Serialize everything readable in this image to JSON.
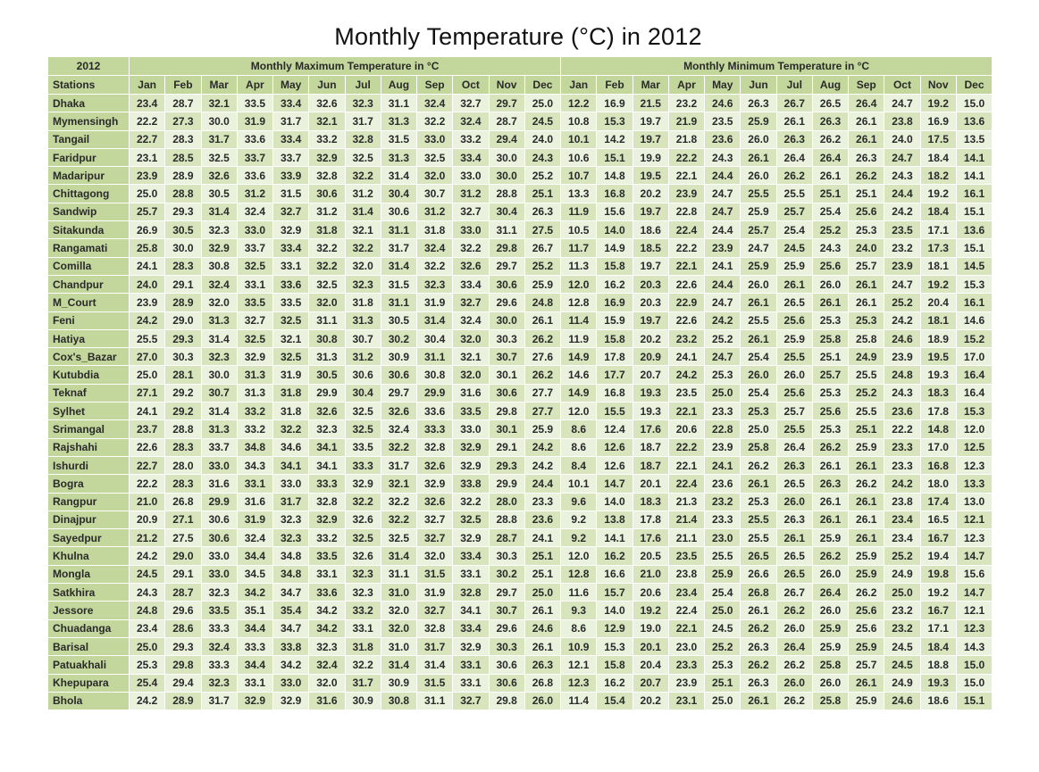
{
  "title": "Monthly Temperature (°C) in 2012",
  "chart_data": {
    "type": "table",
    "title": "Monthly Temperature (°C) in 2012",
    "year_label": "2012",
    "stations_label": "Stations",
    "group_headers": {
      "max": "Monthly Maximum Temperature in °C",
      "min": "Monthly Minimum Temperature in °C"
    },
    "months": [
      "Jan",
      "Feb",
      "Mar",
      "Apr",
      "May",
      "Jun",
      "Jul",
      "Aug",
      "Sep",
      "Oct",
      "Nov",
      "Dec"
    ],
    "rows": [
      {
        "station": "Dhaka",
        "max": [
          23.4,
          28.7,
          32.1,
          33.5,
          33.4,
          32.6,
          32.3,
          31.1,
          32.4,
          32.7,
          29.7,
          25.0
        ],
        "min": [
          12.2,
          16.9,
          21.5,
          23.2,
          24.6,
          26.3,
          26.7,
          26.5,
          26.4,
          24.7,
          19.2,
          15.0
        ]
      },
      {
        "station": "Mymensingh",
        "max": [
          22.2,
          27.3,
          30.0,
          31.9,
          31.7,
          32.1,
          31.7,
          31.3,
          32.2,
          32.4,
          28.7,
          24.5
        ],
        "min": [
          10.8,
          15.3,
          19.7,
          21.9,
          23.5,
          25.9,
          26.1,
          26.3,
          26.1,
          23.8,
          16.9,
          13.6
        ]
      },
      {
        "station": "Tangail",
        "max": [
          22.7,
          28.3,
          31.7,
          33.6,
          33.4,
          33.2,
          32.8,
          31.5,
          33.0,
          33.2,
          29.4,
          24.0
        ],
        "min": [
          10.1,
          14.2,
          19.7,
          21.8,
          23.6,
          26.0,
          26.3,
          26.2,
          26.1,
          24.0,
          17.5,
          13.5
        ]
      },
      {
        "station": "Faridpur",
        "max": [
          23.1,
          28.5,
          32.5,
          33.7,
          33.7,
          32.9,
          32.5,
          31.3,
          32.5,
          33.4,
          30.0,
          24.3
        ],
        "min": [
          10.6,
          15.1,
          19.9,
          22.2,
          24.3,
          26.1,
          26.4,
          26.4,
          26.3,
          24.7,
          18.4,
          14.1
        ]
      },
      {
        "station": "Madaripur",
        "max": [
          23.9,
          28.9,
          32.6,
          33.6,
          33.9,
          32.8,
          32.2,
          31.4,
          32.0,
          33.0,
          30.0,
          25.2
        ],
        "min": [
          10.7,
          14.8,
          19.5,
          22.1,
          24.4,
          26.0,
          26.2,
          26.1,
          26.2,
          24.3,
          18.2,
          14.1
        ]
      },
      {
        "station": "Chittagong",
        "max": [
          25.0,
          28.8,
          30.5,
          31.2,
          31.5,
          30.6,
          31.2,
          30.4,
          30.7,
          31.2,
          28.8,
          25.1
        ],
        "min": [
          13.3,
          16.8,
          20.2,
          23.9,
          24.7,
          25.5,
          25.5,
          25.1,
          25.1,
          24.4,
          19.2,
          16.1
        ]
      },
      {
        "station": "Sandwip",
        "max": [
          25.7,
          29.3,
          31.4,
          32.4,
          32.7,
          31.2,
          31.4,
          30.6,
          31.2,
          32.7,
          30.4,
          26.3
        ],
        "min": [
          11.9,
          15.6,
          19.7,
          22.8,
          24.7,
          25.9,
          25.7,
          25.4,
          25.6,
          24.2,
          18.4,
          15.1
        ]
      },
      {
        "station": "Sitakunda",
        "max": [
          26.9,
          30.5,
          32.3,
          33.0,
          32.9,
          31.8,
          32.1,
          31.1,
          31.8,
          33.0,
          31.1,
          27.5
        ],
        "min": [
          10.5,
          14.0,
          18.6,
          22.4,
          24.4,
          25.7,
          25.4,
          25.2,
          25.3,
          23.5,
          17.1,
          13.6
        ]
      },
      {
        "station": "Rangamati",
        "max": [
          25.8,
          30.0,
          32.9,
          33.7,
          33.4,
          32.2,
          32.2,
          31.7,
          32.4,
          32.2,
          29.8,
          26.7
        ],
        "min": [
          11.7,
          14.9,
          18.5,
          22.2,
          23.9,
          24.7,
          24.5,
          24.3,
          24.0,
          23.2,
          17.3,
          15.1
        ]
      },
      {
        "station": "Comilla",
        "max": [
          24.1,
          28.3,
          30.8,
          32.5,
          33.1,
          32.2,
          32.0,
          31.4,
          32.2,
          32.6,
          29.7,
          25.2
        ],
        "min": [
          11.3,
          15.8,
          19.7,
          22.1,
          24.1,
          25.9,
          25.9,
          25.6,
          25.7,
          23.9,
          18.1,
          14.5
        ]
      },
      {
        "station": "Chandpur",
        "max": [
          24.0,
          29.1,
          32.4,
          33.1,
          33.6,
          32.5,
          32.3,
          31.5,
          32.3,
          33.4,
          30.6,
          25.9
        ],
        "min": [
          12.0,
          16.2,
          20.3,
          22.6,
          24.4,
          26.0,
          26.1,
          26.0,
          26.1,
          24.7,
          19.2,
          15.3
        ]
      },
      {
        "station": "M_Court",
        "max": [
          23.9,
          28.9,
          32.0,
          33.5,
          33.5,
          32.0,
          31.8,
          31.1,
          31.9,
          32.7,
          29.6,
          24.8
        ],
        "min": [
          12.8,
          16.9,
          20.3,
          22.9,
          24.7,
          26.1,
          26.5,
          26.1,
          26.1,
          25.2,
          20.4,
          16.1
        ]
      },
      {
        "station": "Feni",
        "max": [
          24.2,
          29.0,
          31.3,
          32.7,
          32.5,
          31.1,
          31.3,
          30.5,
          31.4,
          32.4,
          30.0,
          26.1
        ],
        "min": [
          11.4,
          15.9,
          19.7,
          22.6,
          24.2,
          25.5,
          25.6,
          25.3,
          25.3,
          24.2,
          18.1,
          14.6
        ]
      },
      {
        "station": "Hatiya",
        "max": [
          25.5,
          29.3,
          31.4,
          32.5,
          32.1,
          30.8,
          30.7,
          30.2,
          30.4,
          32.0,
          30.3,
          26.2
        ],
        "min": [
          11.9,
          15.8,
          20.2,
          23.2,
          25.2,
          26.1,
          25.9,
          25.8,
          25.8,
          24.6,
          18.9,
          15.2
        ]
      },
      {
        "station": "Cox's_Bazar",
        "max": [
          27.0,
          30.3,
          32.3,
          32.9,
          32.5,
          31.3,
          31.2,
          30.9,
          31.1,
          32.1,
          30.7,
          27.6
        ],
        "min": [
          14.9,
          17.8,
          20.9,
          24.1,
          24.7,
          25.4,
          25.5,
          25.1,
          24.9,
          23.9,
          19.5,
          17.0
        ]
      },
      {
        "station": "Kutubdia",
        "max": [
          25.0,
          28.1,
          30.0,
          31.3,
          31.9,
          30.5,
          30.6,
          30.6,
          30.8,
          32.0,
          30.1,
          26.2
        ],
        "min": [
          14.6,
          17.7,
          20.7,
          24.2,
          25.3,
          26.0,
          26.0,
          25.7,
          25.5,
          24.8,
          19.3,
          16.4
        ]
      },
      {
        "station": "Teknaf",
        "max": [
          27.1,
          29.2,
          30.7,
          31.3,
          31.8,
          29.9,
          30.4,
          29.7,
          29.9,
          31.6,
          30.6,
          27.7
        ],
        "min": [
          14.9,
          16.8,
          19.3,
          23.5,
          25.0,
          25.4,
          25.6,
          25.3,
          25.2,
          24.3,
          18.3,
          16.4
        ]
      },
      {
        "station": "Sylhet",
        "max": [
          24.1,
          29.2,
          31.4,
          33.2,
          31.8,
          32.6,
          32.5,
          32.6,
          33.6,
          33.5,
          29.8,
          27.7
        ],
        "min": [
          12.0,
          15.5,
          19.3,
          22.1,
          23.3,
          25.3,
          25.7,
          25.6,
          25.5,
          23.6,
          17.8,
          15.3
        ]
      },
      {
        "station": "Srimangal",
        "max": [
          23.7,
          28.8,
          31.3,
          33.2,
          32.2,
          32.3,
          32.5,
          32.4,
          33.3,
          33.0,
          30.1,
          25.9
        ],
        "min": [
          8.6,
          12.4,
          17.6,
          20.6,
          22.8,
          25.0,
          25.5,
          25.3,
          25.1,
          22.2,
          14.8,
          12.0
        ]
      },
      {
        "station": "Rajshahi",
        "max": [
          22.6,
          28.3,
          33.7,
          34.8,
          34.6,
          34.1,
          33.5,
          32.2,
          32.8,
          32.9,
          29.1,
          24.2
        ],
        "min": [
          8.6,
          12.6,
          18.7,
          22.2,
          23.9,
          25.8,
          26.4,
          26.2,
          25.9,
          23.3,
          17.0,
          12.5
        ]
      },
      {
        "station": "Ishurdi",
        "max": [
          22.7,
          28.0,
          33.0,
          34.3,
          34.1,
          34.1,
          33.3,
          31.7,
          32.6,
          32.9,
          29.3,
          24.2
        ],
        "min": [
          8.4,
          12.6,
          18.7,
          22.1,
          24.1,
          26.2,
          26.3,
          26.1,
          26.1,
          23.3,
          16.8,
          12.3
        ]
      },
      {
        "station": "Bogra",
        "max": [
          22.2,
          28.3,
          31.6,
          33.1,
          33.0,
          33.3,
          32.9,
          32.1,
          32.9,
          33.8,
          29.9,
          24.4
        ],
        "min": [
          10.1,
          14.7,
          20.1,
          22.4,
          23.6,
          26.1,
          26.5,
          26.3,
          26.2,
          24.2,
          18.0,
          13.3
        ]
      },
      {
        "station": "Rangpur",
        "max": [
          21.0,
          26.8,
          29.9,
          31.6,
          31.7,
          32.8,
          32.2,
          32.2,
          32.6,
          32.2,
          28.0,
          23.3
        ],
        "min": [
          9.6,
          14.0,
          18.3,
          21.3,
          23.2,
          25.3,
          26.0,
          26.1,
          26.1,
          23.8,
          17.4,
          13.0
        ]
      },
      {
        "station": "Dinajpur",
        "max": [
          20.9,
          27.1,
          30.6,
          31.9,
          32.3,
          32.9,
          32.6,
          32.2,
          32.7,
          32.5,
          28.8,
          23.6
        ],
        "min": [
          9.2,
          13.8,
          17.8,
          21.4,
          23.3,
          25.5,
          26.3,
          26.1,
          26.1,
          23.4,
          16.5,
          12.1
        ]
      },
      {
        "station": "Sayedpur",
        "max": [
          21.2,
          27.5,
          30.6,
          32.4,
          32.3,
          33.2,
          32.5,
          32.5,
          32.7,
          32.9,
          28.7,
          24.1
        ],
        "min": [
          9.2,
          14.1,
          17.6,
          21.1,
          23.0,
          25.5,
          26.1,
          25.9,
          26.1,
          23.4,
          16.7,
          12.3
        ]
      },
      {
        "station": "Khulna",
        "max": [
          24.2,
          29.0,
          33.0,
          34.4,
          34.8,
          33.5,
          32.6,
          31.4,
          32.0,
          33.4,
          30.3,
          25.1
        ],
        "min": [
          12.0,
          16.2,
          20.5,
          23.5,
          25.5,
          26.5,
          26.5,
          26.2,
          25.9,
          25.2,
          19.4,
          14.7
        ]
      },
      {
        "station": "Mongla",
        "max": [
          24.5,
          29.1,
          33.0,
          34.5,
          34.8,
          33.1,
          32.3,
          31.1,
          31.5,
          33.1,
          30.2,
          25.1
        ],
        "min": [
          12.8,
          16.6,
          21.0,
          23.8,
          25.9,
          26.6,
          26.5,
          26.0,
          25.9,
          24.9,
          19.8,
          15.6
        ]
      },
      {
        "station": "Satkhira",
        "max": [
          24.3,
          28.7,
          32.3,
          34.2,
          34.7,
          33.6,
          32.3,
          31.0,
          31.9,
          32.8,
          29.7,
          25.0
        ],
        "min": [
          11.6,
          15.7,
          20.6,
          23.4,
          25.4,
          26.8,
          26.7,
          26.4,
          26.2,
          25.0,
          19.2,
          14.7
        ]
      },
      {
        "station": "Jessore",
        "max": [
          24.8,
          29.6,
          33.5,
          35.1,
          35.4,
          34.2,
          33.2,
          32.0,
          32.7,
          34.1,
          30.7,
          26.1
        ],
        "min": [
          9.3,
          14.0,
          19.2,
          22.4,
          25.0,
          26.1,
          26.2,
          26.0,
          25.6,
          23.2,
          16.7,
          12.1
        ]
      },
      {
        "station": "Chuadanga",
        "max": [
          23.4,
          28.6,
          33.3,
          34.4,
          34.7,
          34.2,
          33.1,
          32.0,
          32.8,
          33.4,
          29.6,
          24.6
        ],
        "min": [
          8.6,
          12.9,
          19.0,
          22.1,
          24.5,
          26.2,
          26.0,
          25.9,
          25.6,
          23.2,
          17.1,
          12.3
        ]
      },
      {
        "station": "Barisal",
        "max": [
          25.0,
          29.3,
          32.4,
          33.3,
          33.8,
          32.3,
          31.8,
          31.0,
          31.7,
          32.9,
          30.3,
          26.1
        ],
        "min": [
          10.9,
          15.3,
          20.1,
          23.0,
          25.2,
          26.3,
          26.4,
          25.9,
          25.9,
          24.5,
          18.4,
          14.3
        ]
      },
      {
        "station": "Patuakhali",
        "max": [
          25.3,
          29.8,
          33.3,
          34.4,
          34.2,
          32.4,
          32.2,
          31.4,
          31.4,
          33.1,
          30.6,
          26.3
        ],
        "min": [
          12.1,
          15.8,
          20.4,
          23.3,
          25.3,
          26.2,
          26.2,
          25.8,
          25.7,
          24.5,
          18.8,
          15.0
        ]
      },
      {
        "station": "Khepupara",
        "max": [
          25.4,
          29.4,
          32.3,
          33.1,
          33.0,
          32.0,
          31.7,
          30.9,
          31.5,
          33.1,
          30.6,
          26.8
        ],
        "min": [
          12.3,
          16.2,
          20.7,
          23.9,
          25.1,
          26.3,
          26.0,
          26.0,
          26.1,
          24.9,
          19.3,
          15.0
        ]
      },
      {
        "station": "Bhola",
        "max": [
          24.2,
          28.9,
          31.7,
          32.9,
          32.9,
          31.6,
          30.9,
          30.8,
          31.1,
          32.7,
          29.8,
          26.0
        ],
        "min": [
          11.4,
          15.4,
          20.2,
          23.1,
          25.0,
          26.1,
          26.2,
          25.8,
          25.9,
          24.6,
          18.6,
          15.1
        ]
      }
    ]
  },
  "colors": {
    "header_bg": "#c3d69b",
    "row_bg_odd": "#d7e4bc",
    "row_bg_even": "#eaf1dd",
    "station_bg": "#c3d69b",
    "text": "#2a2a2a"
  }
}
